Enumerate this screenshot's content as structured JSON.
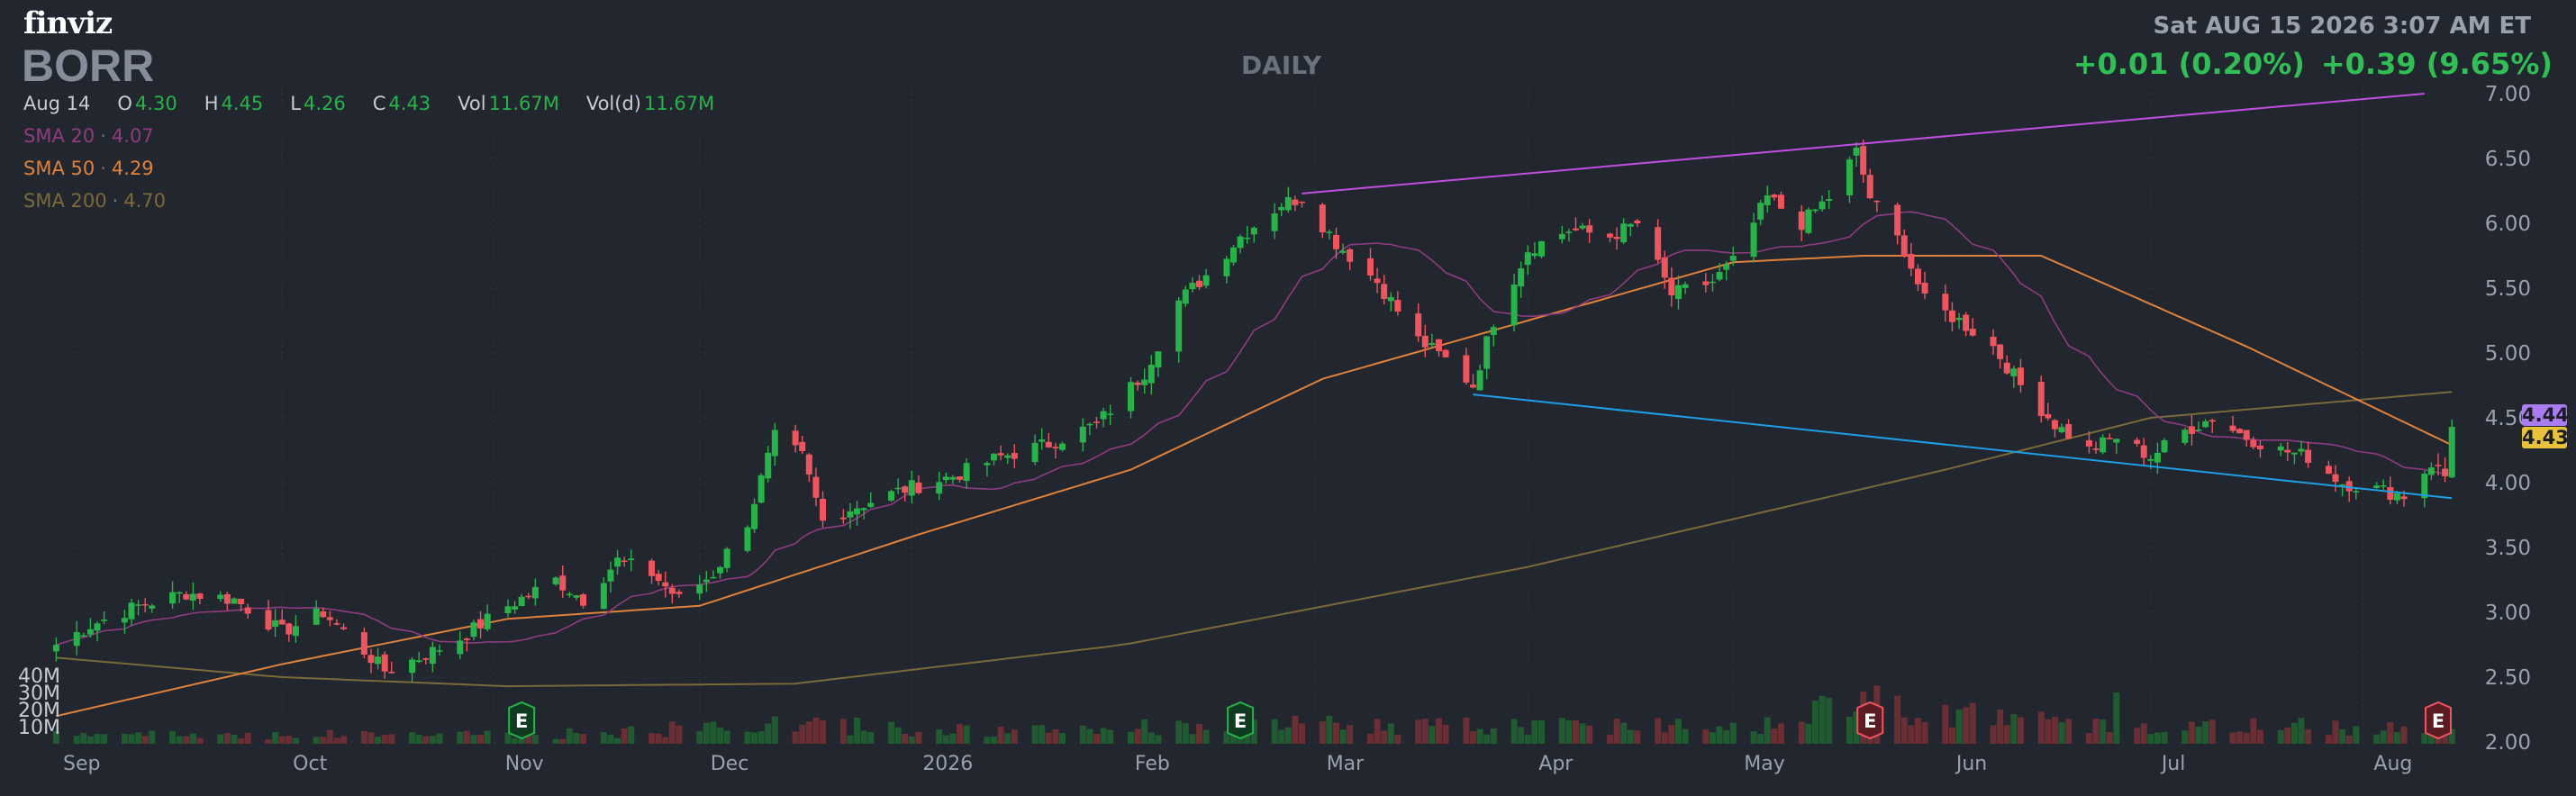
{
  "header": {
    "logo": "finviz",
    "ticker": "BORR",
    "timeframe": "DAILY",
    "datetime": "Sat AUG 15 2026 3:07 AM ET",
    "change_abs": "+0.01 (0.20%)",
    "change_ext": "+0.39 (9.65%)",
    "ohlc": {
      "date": "Aug 14",
      "o_label": "O",
      "o": "4.30",
      "h_label": "H",
      "h": "4.45",
      "l_label": "L",
      "l": "4.26",
      "c_label": "C",
      "c": "4.43",
      "vol_label": "Vol",
      "vol": "11.67M",
      "vold_label": "Vol(d)",
      "vold": "11.67M"
    },
    "sma": [
      {
        "label": "SMA 20",
        "value": "4.07",
        "color": "#8e3c7f"
      },
      {
        "label": "SMA 50",
        "value": "4.29",
        "color": "#e0823b"
      },
      {
        "label": "SMA 200",
        "value": "4.70",
        "color": "#7a6a3a"
      }
    ]
  },
  "price_badges": [
    {
      "value": "4.44",
      "price": 4.44,
      "color": "#a97cf0"
    },
    {
      "value": "4.43",
      "price": 4.43,
      "color": "#e8c23a"
    }
  ],
  "chart_data": {
    "type": "candlestick",
    "ylim": [
      2.0,
      7.0
    ],
    "y_ticks": [
      "2.00",
      "2.50",
      "3.00",
      "3.50",
      "4.00",
      "4.50",
      "5.00",
      "5.50",
      "6.00",
      "6.50",
      "7.00"
    ],
    "volume_ticks": [
      "10M",
      "20M",
      "30M",
      "40M"
    ],
    "x_labels": [
      "Sep",
      "Oct",
      "Nov",
      "Dec",
      "2026",
      "Feb",
      "Mar",
      "Apr",
      "May",
      "Jun",
      "Jul",
      "Aug"
    ],
    "grid": true,
    "colors": {
      "up": "#26b34a",
      "down": "#f2545f",
      "sma20": "#8e3c7f",
      "sma50": "#e0823b",
      "sma200": "#7a6a3a",
      "trend_upper": "#c14fe0",
      "trend_lower": "#1e9fe6"
    },
    "earnings_markers": [
      {
        "label": "E",
        "date": "2025-11-05",
        "result": "positive"
      },
      {
        "label": "E",
        "date": "2026-02-18",
        "result": "positive"
      },
      {
        "label": "E",
        "date": "2026-05-21",
        "result": "negative"
      },
      {
        "label": "E",
        "date": "2026-08-12",
        "result": "negative"
      }
    ],
    "trendlines": [
      {
        "name": "upper",
        "from": [
          "2026-02-27",
          6.23
        ],
        "to": [
          "2026-08-10",
          7.0
        ]
      },
      {
        "name": "lower",
        "from": [
          "2026-03-24",
          4.68
        ],
        "to": [
          "2026-08-14",
          3.88
        ]
      }
    ],
    "close_anchors": [
      [
        "2025-08-29",
        2.75
      ],
      [
        "2025-09-03",
        2.9
      ],
      [
        "2025-09-10",
        3.05
      ],
      [
        "2025-09-17",
        3.15
      ],
      [
        "2025-09-24",
        3.1
      ],
      [
        "2025-10-01",
        2.85
      ],
      [
        "2025-10-07",
        3.0
      ],
      [
        "2025-10-13",
        2.7
      ],
      [
        "2025-10-16",
        2.55
      ],
      [
        "2025-10-21",
        2.65
      ],
      [
        "2025-10-27",
        2.8
      ],
      [
        "2025-11-03",
        3.05
      ],
      [
        "2025-11-10",
        3.25
      ],
      [
        "2025-11-14",
        3.1
      ],
      [
        "2025-11-19",
        3.4
      ],
      [
        "2025-11-24",
        3.3
      ],
      [
        "2025-11-28",
        3.1
      ],
      [
        "2025-12-03",
        3.3
      ],
      [
        "2025-12-08",
        3.7
      ],
      [
        "2025-12-12",
        4.35
      ],
      [
        "2025-12-16",
        4.2
      ],
      [
        "2025-12-19",
        3.7
      ],
      [
        "2025-12-23",
        3.8
      ],
      [
        "2025-12-31",
        3.95
      ],
      [
        "2026-01-07",
        4.05
      ],
      [
        "2026-01-14",
        4.2
      ],
      [
        "2026-01-21",
        4.3
      ],
      [
        "2026-01-28",
        4.45
      ],
      [
        "2026-02-04",
        4.85
      ],
      [
        "2026-02-09",
        5.4
      ],
      [
        "2026-02-13",
        5.6
      ],
      [
        "2026-02-18",
        5.9
      ],
      [
        "2026-02-24",
        6.15
      ],
      [
        "2026-02-27",
        6.2
      ],
      [
        "2026-03-04",
        5.85
      ],
      [
        "2026-03-10",
        5.55
      ],
      [
        "2026-03-16",
        5.1
      ],
      [
        "2026-03-20",
        4.95
      ],
      [
        "2026-03-24",
        4.75
      ],
      [
        "2026-03-27",
        5.25
      ],
      [
        "2026-04-01",
        5.8
      ],
      [
        "2026-04-07",
        5.95
      ],
      [
        "2026-04-13",
        5.9
      ],
      [
        "2026-04-17",
        6.0
      ],
      [
        "2026-04-22",
        5.45
      ],
      [
        "2026-04-28",
        5.55
      ],
      [
        "2026-05-01",
        5.7
      ],
      [
        "2026-05-06",
        6.2
      ],
      [
        "2026-05-11",
        6.0
      ],
      [
        "2026-05-15",
        6.2
      ],
      [
        "2026-05-19",
        6.55
      ],
      [
        "2026-05-21",
        6.2
      ],
      [
        "2026-05-26",
        5.8
      ],
      [
        "2026-05-29",
        5.4
      ],
      [
        "2026-06-03",
        5.25
      ],
      [
        "2026-06-08",
        5.05
      ],
      [
        "2026-06-12",
        4.75
      ],
      [
        "2026-06-17",
        4.45
      ],
      [
        "2026-06-22",
        4.25
      ],
      [
        "2026-06-26",
        4.35
      ],
      [
        "2026-07-01",
        4.2
      ],
      [
        "2026-07-06",
        4.4
      ],
      [
        "2026-07-10",
        4.5
      ],
      [
        "2026-07-15",
        4.35
      ],
      [
        "2026-07-20",
        4.25
      ],
      [
        "2026-07-24",
        4.2
      ],
      [
        "2026-07-29",
        4.0
      ],
      [
        "2026-08-03",
        3.95
      ],
      [
        "2026-08-07",
        3.9
      ],
      [
        "2026-08-11",
        4.15
      ],
      [
        "2026-08-13",
        4.05
      ],
      [
        "2026-08-14",
        4.43
      ]
    ],
    "sma50_anchors": [
      [
        "2025-08-29",
        2.2
      ],
      [
        "2025-10-01",
        2.6
      ],
      [
        "2025-11-03",
        2.95
      ],
      [
        "2025-12-01",
        3.05
      ],
      [
        "2026-01-02",
        3.6
      ],
      [
        "2026-02-02",
        4.1
      ],
      [
        "2026-03-02",
        4.8
      ],
      [
        "2026-04-01",
        5.25
      ],
      [
        "2026-05-01",
        5.7
      ],
      [
        "2026-05-20",
        5.75
      ],
      [
        "2026-06-15",
        5.75
      ],
      [
        "2026-07-15",
        5.05
      ],
      [
        "2026-08-14",
        4.29
      ]
    ],
    "sma200_anchors": [
      [
        "2025-08-29",
        2.65
      ],
      [
        "2025-10-01",
        2.5
      ],
      [
        "2025-11-03",
        2.43
      ],
      [
        "2025-12-15",
        2.45
      ],
      [
        "2026-02-01",
        2.75
      ],
      [
        "2026-04-01",
        3.35
      ],
      [
        "2026-06-01",
        4.1
      ],
      [
        "2026-07-01",
        4.5
      ],
      [
        "2026-08-14",
        4.7
      ]
    ],
    "volume_profile_M": [
      [
        "2025-08-29",
        6
      ],
      [
        "2025-11-15",
        7
      ],
      [
        "2025-12-12",
        14
      ],
      [
        "2026-01-15",
        8
      ],
      [
        "2026-02-18",
        14
      ],
      [
        "2026-03-20",
        12
      ],
      [
        "2026-05-05",
        14
      ],
      [
        "2026-05-22",
        30
      ],
      [
        "2026-06-20",
        12
      ],
      [
        "2026-08-14",
        12
      ]
    ]
  }
}
